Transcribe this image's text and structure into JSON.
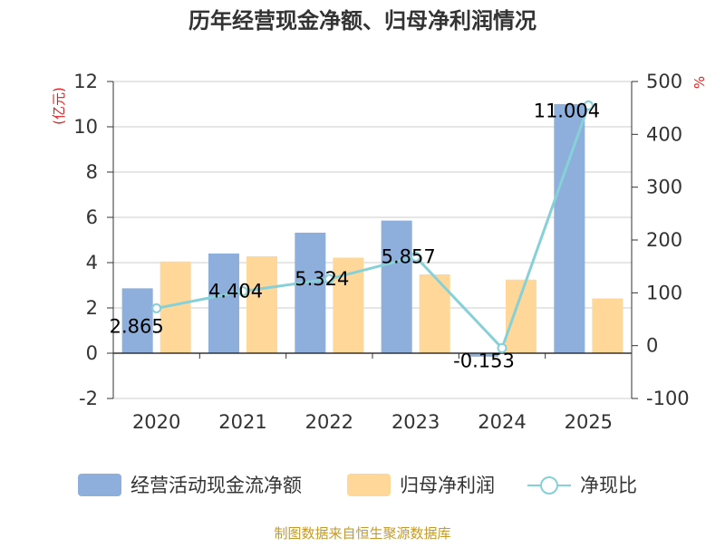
{
  "chart_data": {
    "type": "bar",
    "title": "历年经营现金净额、归母净利润情况",
    "categories": [
      "2020",
      "2021",
      "2022",
      "2023",
      "2024",
      "2025"
    ],
    "series": [
      {
        "name": "经营活动现金流净额",
        "kind": "bar",
        "axis": "left",
        "color": "#8EAEDB",
        "values": [
          2.865,
          4.404,
          5.324,
          5.857,
          -0.153,
          11.004
        ]
      },
      {
        "name": "归母净利润",
        "kind": "bar",
        "axis": "left",
        "color": "#FFD899",
        "values": [
          4.05,
          4.28,
          4.22,
          3.48,
          3.25,
          2.42
        ]
      },
      {
        "name": "净现比",
        "kind": "line",
        "axis": "right",
        "color": "#86D0D8",
        "values": [
          70.7,
          102.9,
          126.2,
          168.3,
          -4.7,
          454.7
        ]
      }
    ],
    "data_labels": [
      "2.865",
      "4.404",
      "5.324",
      "5.857",
      "-0.153",
      "11.004"
    ],
    "y_left": {
      "label": "(亿元)",
      "min": -2,
      "max": 12,
      "ticks": [
        -2,
        0,
        2,
        4,
        6,
        8,
        10,
        12
      ]
    },
    "y_right": {
      "label": "%",
      "min": -100,
      "max": 500,
      "ticks": [
        -100,
        0,
        100,
        200,
        300,
        400,
        500
      ]
    },
    "legend_position": "bottom",
    "grid": true
  },
  "footer": "制图数据来自恒生聚源数据库",
  "colors": {
    "label_red": "#E02020",
    "footer_gold": "#C49A2A",
    "axis": "#333333",
    "grid": "#CCCCCC"
  }
}
